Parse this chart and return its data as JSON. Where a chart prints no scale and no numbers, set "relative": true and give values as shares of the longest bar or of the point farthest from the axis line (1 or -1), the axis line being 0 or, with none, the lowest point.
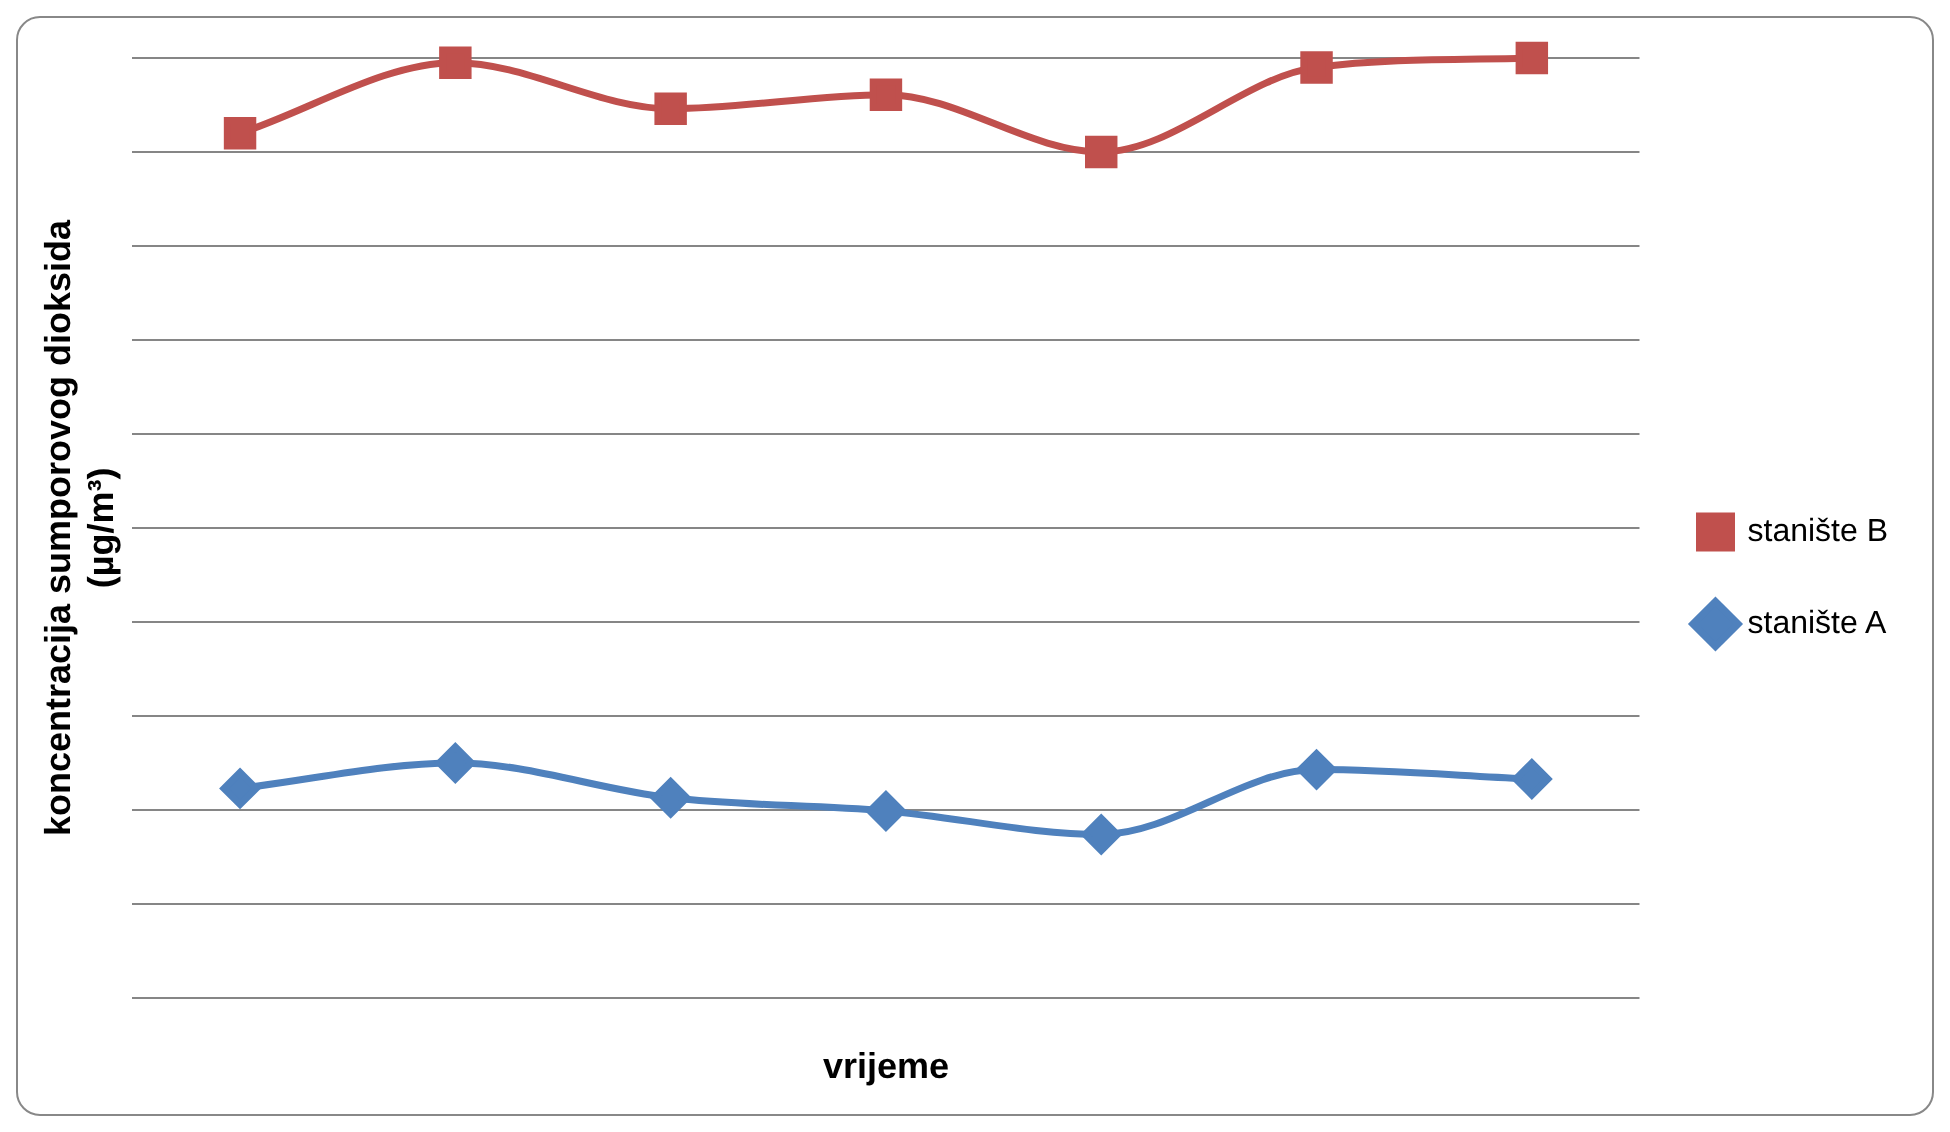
{
  "chart_data": {
    "type": "line",
    "relative": true,
    "xlabel": "vrijeme",
    "ylabel": "koncentracija sumporovog dioksida (µg/m³)",
    "categories": [
      null,
      null,
      null,
      null,
      null,
      null,
      null
    ],
    "grid": "y",
    "legend": "right",
    "line_style": "solid",
    "series": [
      {
        "name": "stanište B",
        "color": "#c0504d",
        "marker": "square",
        "values": [
          0.92,
          0.995,
          0.946,
          0.961,
          0.9,
          0.99,
          1
        ]
      },
      {
        "name": "stanište A",
        "color": "#4f81bd",
        "marker": "diamond",
        "values": [
          0.223,
          0.25,
          0.213,
          0.199,
          0.174,
          0.243,
          0.233
        ]
      }
    ]
  }
}
